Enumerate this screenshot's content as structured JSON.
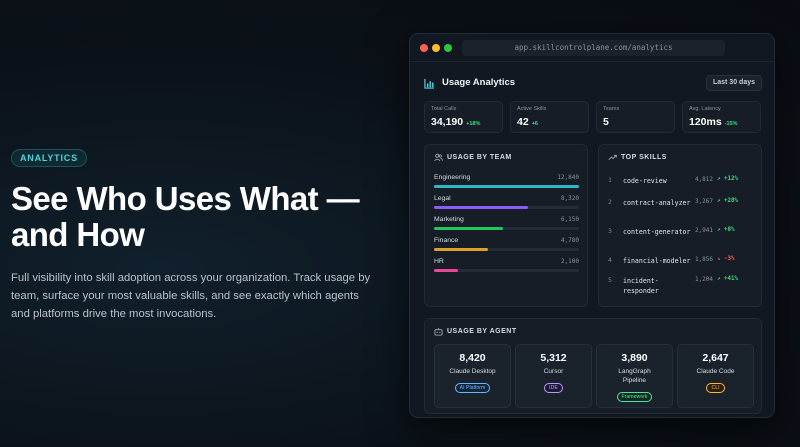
{
  "hero": {
    "badge": "ANALYTICS",
    "title_line1": "See Who Uses What —",
    "title_line2": "and How",
    "description": "Full visibility into skill adoption across your organization. Track usage by team, surface your most valuable skills, and see exactly which agents and platforms drive the most invocations."
  },
  "window": {
    "url": "app.skillcontrolplane.com/analytics",
    "title": "Usage Analytics",
    "range_label": "Last 30 days"
  },
  "stats": [
    {
      "label": "Total Calls",
      "value": "34,190",
      "delta": "+18%"
    },
    {
      "label": "Active Skills",
      "value": "42",
      "delta": "+6"
    },
    {
      "label": "Teams",
      "value": "5",
      "delta": ""
    },
    {
      "label": "Avg. Latency",
      "value": "120ms",
      "delta": "-15%"
    }
  ],
  "usage_by_team": {
    "title": "USAGE BY TEAM",
    "max": 12840,
    "teams": [
      {
        "name": "Engineering",
        "value": "12,840",
        "amount": 12840,
        "color": "#2fb6c9"
      },
      {
        "name": "Legal",
        "value": "8,320",
        "amount": 8320,
        "color": "#8b5cf6"
      },
      {
        "name": "Marketing",
        "value": "6,150",
        "amount": 6150,
        "color": "#22c55e"
      },
      {
        "name": "Finance",
        "value": "4,780",
        "amount": 4780,
        "color": "#e0a030"
      },
      {
        "name": "HR",
        "value": "2,100",
        "amount": 2100,
        "color": "#ec4899"
      }
    ]
  },
  "top_skills": {
    "title": "TOP SKILLS",
    "skills": [
      {
        "rank": "1",
        "name": "code-review",
        "count": "4,812",
        "trend": "↗ +12%",
        "direction": "up"
      },
      {
        "rank": "2",
        "name": "contract-analyzer",
        "count": "3,267",
        "trend": "↗ +28%",
        "direction": "up"
      },
      {
        "rank": "3",
        "name": "content-generator",
        "count": "2,941",
        "trend": "↗ +8%",
        "direction": "up"
      },
      {
        "rank": "4",
        "name": "financial-modeler",
        "count": "1,856",
        "trend": "↘ -3%",
        "direction": "down"
      },
      {
        "rank": "5",
        "name": "incident-responder",
        "count": "1,204",
        "trend": "↗ +41%",
        "direction": "up"
      }
    ]
  },
  "usage_by_agent": {
    "title": "USAGE BY AGENT",
    "agents": [
      {
        "count": "8,420",
        "name": "Claude Desktop",
        "tag": "AI Platform",
        "tag_style": "blue"
      },
      {
        "count": "5,312",
        "name": "Cursor",
        "tag": "IDE",
        "tag_style": "purple"
      },
      {
        "count": "3,890",
        "name": "LangGraph Pipeline",
        "tag": "Framework",
        "tag_style": "green"
      },
      {
        "count": "2,647",
        "name": "Claude Code",
        "tag": "CLI",
        "tag_style": "orange"
      }
    ]
  }
}
